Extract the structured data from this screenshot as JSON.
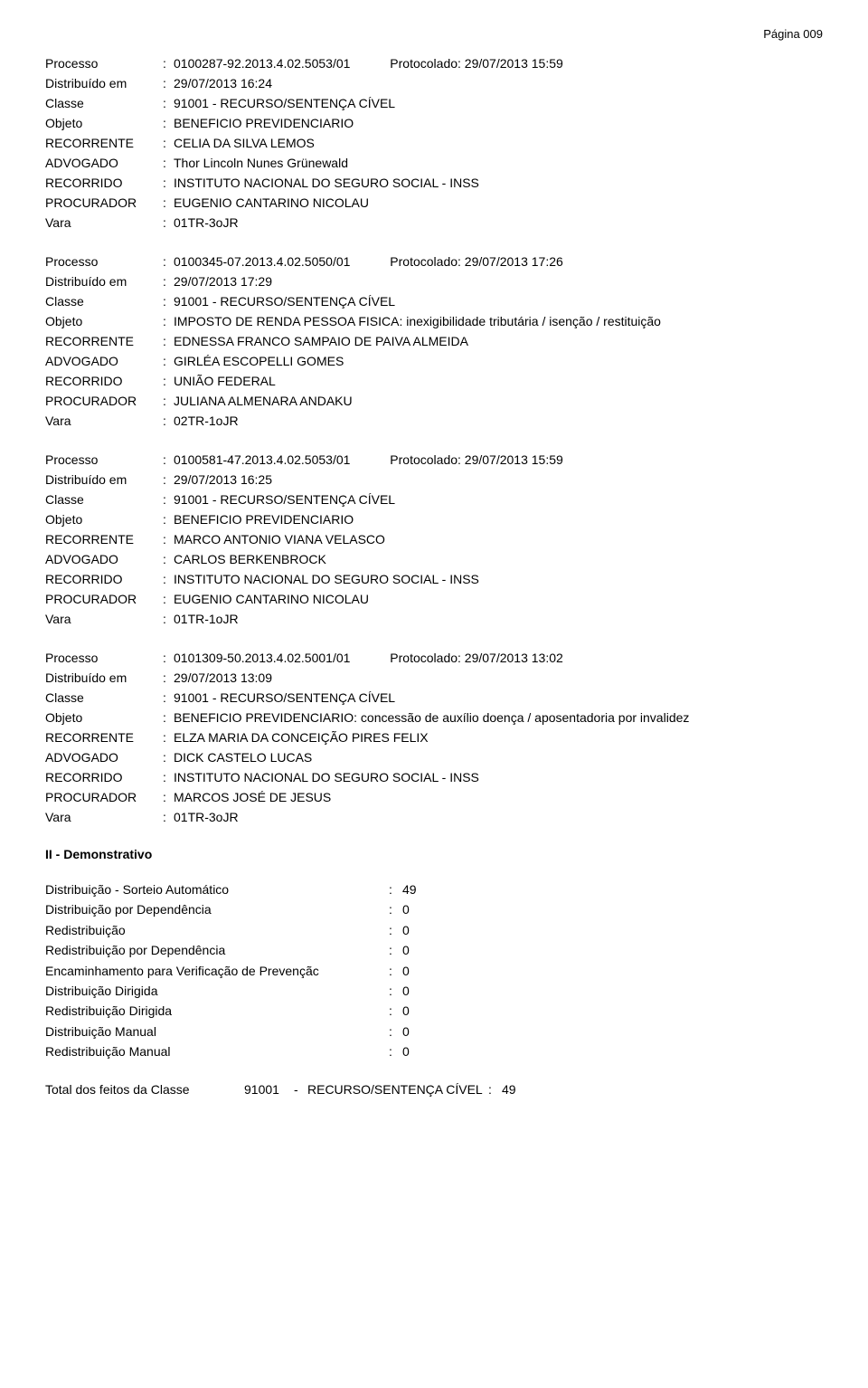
{
  "pageNumber": "Página 009",
  "processes": [
    {
      "processo": "0100287-92.2013.4.02.5053/01",
      "protocolado": "Protocolado: 29/07/2013 15:59",
      "distribuido": "29/07/2013 16:24",
      "classe": "91001 - RECURSO/SENTENÇA CÍVEL",
      "objeto": "BENEFICIO PREVIDENCIARIO",
      "recorrente": "CELIA DA SILVA LEMOS",
      "advogado": "Thor Lincoln Nunes Grünewald",
      "recorrido": "INSTITUTO NACIONAL DO SEGURO SOCIAL - INSS",
      "procurador": "EUGENIO CANTARINO NICOLAU",
      "vara": "01TR-3oJR"
    },
    {
      "processo": "0100345-07.2013.4.02.5050/01",
      "protocolado": "Protocolado: 29/07/2013 17:26",
      "distribuido": "29/07/2013 17:29",
      "classe": "91001 - RECURSO/SENTENÇA CÍVEL",
      "objeto": "IMPOSTO DE RENDA PESSOA FISICA: inexigibilidade tributária / isenção / restituição",
      "recorrente": "EDNESSA FRANCO SAMPAIO DE PAIVA ALMEIDA",
      "advogado": "GIRLÉA ESCOPELLI GOMES",
      "recorrido": "UNIÃO FEDERAL",
      "procurador": "JULIANA ALMENARA ANDAKU",
      "vara": "02TR-1oJR"
    },
    {
      "processo": "0100581-47.2013.4.02.5053/01",
      "protocolado": "Protocolado: 29/07/2013 15:59",
      "distribuido": "29/07/2013 16:25",
      "classe": "91001 - RECURSO/SENTENÇA CÍVEL",
      "objeto": "BENEFICIO PREVIDENCIARIO",
      "recorrente": "MARCO ANTONIO VIANA VELASCO",
      "advogado": "CARLOS BERKENBROCK",
      "recorrido": "INSTITUTO NACIONAL DO SEGURO SOCIAL - INSS",
      "procurador": "EUGENIO CANTARINO NICOLAU",
      "vara": "01TR-1oJR"
    },
    {
      "processo": "0101309-50.2013.4.02.5001/01",
      "protocolado": "Protocolado: 29/07/2013 13:02",
      "distribuido": "29/07/2013 13:09",
      "classe": "91001 - RECURSO/SENTENÇA CÍVEL",
      "objeto": "BENEFICIO PREVIDENCIARIO: concessão de auxílio doença / aposentadoria por invalidez",
      "recorrente": "ELZA MARIA DA CONCEIÇÃO PIRES FELIX",
      "advogado": "DICK CASTELO LUCAS",
      "recorrido": "INSTITUTO NACIONAL DO SEGURO SOCIAL - INSS",
      "procurador": "MARCOS JOSÉ DE JESUS",
      "vara": "01TR-3oJR"
    }
  ],
  "labels": {
    "processo": "Processo",
    "distribuido": "Distribuído em",
    "classe": "Classe",
    "objeto": "Objeto",
    "recorrente": "RECORRENTE",
    "advogado": "ADVOGADO",
    "recorrido": "RECORRIDO",
    "procurador": "PROCURADOR",
    "vara": "Vara"
  },
  "sectionTitle": "II - Demonstrativo",
  "stats": [
    {
      "label": "Distribuição - Sorteio Automático",
      "value": "49"
    },
    {
      "label": "Distribuição por Dependência",
      "value": "0"
    },
    {
      "label": "Redistribuição",
      "value": "0"
    },
    {
      "label": "Redistribuição por Dependência",
      "value": "0"
    },
    {
      "label": "Encaminhamento para Verificação de Prevençãc",
      "value": "0"
    },
    {
      "label": "Distribuição Dirigida",
      "value": "0"
    },
    {
      "label": "Redistribuição Dirigida",
      "value": "0"
    },
    {
      "label": "Distribuição Manual",
      "value": "0"
    },
    {
      "label": "Redistribuição Manual",
      "value": "0"
    }
  ],
  "total": {
    "label": "Total dos feitos da Classe",
    "classNo": "91001",
    "sep": "-",
    "className": "RECURSO/SENTENÇA CÍVEL",
    "value": "49"
  }
}
